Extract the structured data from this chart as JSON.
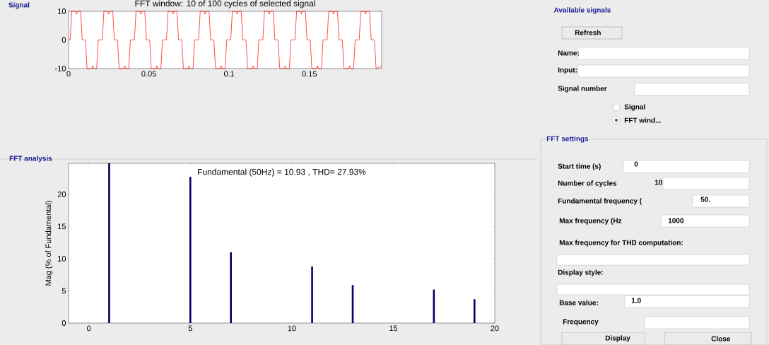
{
  "chart_data": [
    {
      "type": "line",
      "title": "FFT window: 10 of 100 cycles of selected signal",
      "annotations": [
        "Signal"
      ],
      "color": "#ff0000",
      "xlim": [
        0,
        0.195
      ],
      "ylim": [
        -10,
        10
      ],
      "xticks": [
        0,
        0.05,
        0.1,
        0.15
      ],
      "yticks": [
        -10,
        0,
        10
      ],
      "x": [
        0,
        0.001,
        0.002,
        0.0045,
        0.005,
        0.0055,
        0.0075,
        0.0085,
        0.0105,
        0.0115,
        0.0145,
        0.015,
        0.0155,
        0.0175,
        0.0185,
        0.021,
        0.022,
        0.0245,
        0.025,
        0.0255,
        0.0275,
        0.0285,
        0.0305,
        0.0315,
        0.0345,
        0.035,
        0.0355,
        0.0375,
        0.0385,
        0.041,
        0.042,
        0.0445,
        0.045,
        0.0455,
        0.0475,
        0.0485,
        0.0505,
        0.0515,
        0.0545,
        0.055,
        0.0555,
        0.0575,
        0.0585,
        0.061,
        0.062,
        0.0645,
        0.065,
        0.0655,
        0.0675,
        0.0685,
        0.0705,
        0.0715,
        0.0745,
        0.075,
        0.0755,
        0.0775,
        0.0785,
        0.081,
        0.082,
        0.0845,
        0.085,
        0.0855,
        0.0875,
        0.0885,
        0.0905,
        0.0915,
        0.0945,
        0.095,
        0.0955,
        0.0975,
        0.0985,
        0.101,
        0.102,
        0.1045,
        0.105,
        0.1055,
        0.1075,
        0.1085,
        0.1105,
        0.1115,
        0.1145,
        0.115,
        0.1155,
        0.1175,
        0.1185,
        0.121,
        0.122,
        0.1245,
        0.125,
        0.1255,
        0.1275,
        0.1285,
        0.1305,
        0.1315,
        0.1345,
        0.135,
        0.1355,
        0.1375,
        0.1385,
        0.141,
        0.142,
        0.1445,
        0.145,
        0.1455,
        0.1475,
        0.1485,
        0.1505,
        0.1515,
        0.1545,
        0.155,
        0.1555,
        0.1575,
        0.1585,
        0.161,
        0.162,
        0.1645,
        0.165,
        0.1655,
        0.1675,
        0.1685,
        0.1705,
        0.1715,
        0.1745,
        0.175,
        0.1755,
        0.1775,
        0.1785,
        0.181,
        0.182,
        0.1845,
        0.185,
        0.1855,
        0.1875,
        0.1885,
        0.1905,
        0.1915,
        0.195
      ],
      "values": [
        0,
        0,
        10,
        10,
        9,
        10,
        10,
        0,
        0,
        -10,
        -10,
        -9,
        -10,
        -10,
        0,
        0,
        10,
        10,
        9,
        10,
        10,
        0,
        0,
        -10,
        -10,
        -9,
        -10,
        -10,
        0,
        0,
        10,
        10,
        9,
        10,
        10,
        0,
        0,
        -10,
        -10,
        -9,
        -10,
        -10,
        0,
        0,
        10,
        10,
        9,
        10,
        10,
        0,
        0,
        -10,
        -10,
        -9,
        -10,
        -10,
        0,
        0,
        10,
        10,
        9,
        10,
        10,
        0,
        0,
        -10,
        -10,
        -9,
        -10,
        -10,
        0,
        0,
        10,
        10,
        9,
        10,
        10,
        0,
        0,
        -10,
        -10,
        -9,
        -10,
        -10,
        0,
        0,
        10,
        10,
        9,
        10,
        10,
        0,
        0,
        -10,
        -10,
        -9,
        -10,
        -10,
        0,
        0,
        10,
        10,
        9,
        10,
        10,
        0,
        0,
        -10,
        -10,
        -9,
        -10,
        -10,
        0,
        0,
        10,
        10,
        9,
        10,
        10,
        0,
        0,
        -10,
        -10,
        -9,
        -10,
        -10,
        0,
        0,
        10,
        10,
        9,
        10,
        10,
        0,
        0,
        -10,
        -9
      ]
    },
    {
      "type": "bar",
      "title": "Fundamental (50Hz) = 10.93 , THD= 27.93%",
      "ylabel": "Mag (% of Fundamental)",
      "annotations": [
        "FFT analysis"
      ],
      "color": "#000066",
      "xlim": [
        -1,
        20
      ],
      "ylim": [
        0,
        24.8
      ],
      "xticks": [
        0,
        5,
        10,
        15,
        20
      ],
      "yticks": [
        0,
        5,
        10,
        15,
        20
      ],
      "x": [
        1,
        5,
        7,
        11,
        13,
        17,
        19
      ],
      "values": [
        24.8,
        22.7,
        11,
        8.8,
        5.9,
        5.2,
        3.7
      ]
    },
    {
      "type": "other",
      "title": "Available signals",
      "subtitle": "FFT settings",
      "annotations": [
        "Refresh",
        "Name:",
        "Input:",
        "Signal number",
        "Signal",
        "FFT wind...",
        "Start time (s)",
        "0",
        "Number of cycles",
        "10",
        "Fundamental frequency (",
        "50.",
        "Max frequency (Hz",
        "1000",
        "Max frequency for THD computation:",
        "Display style:",
        "Base value:",
        "1.0",
        "Frequency",
        "Display",
        "Close"
      ]
    }
  ]
}
